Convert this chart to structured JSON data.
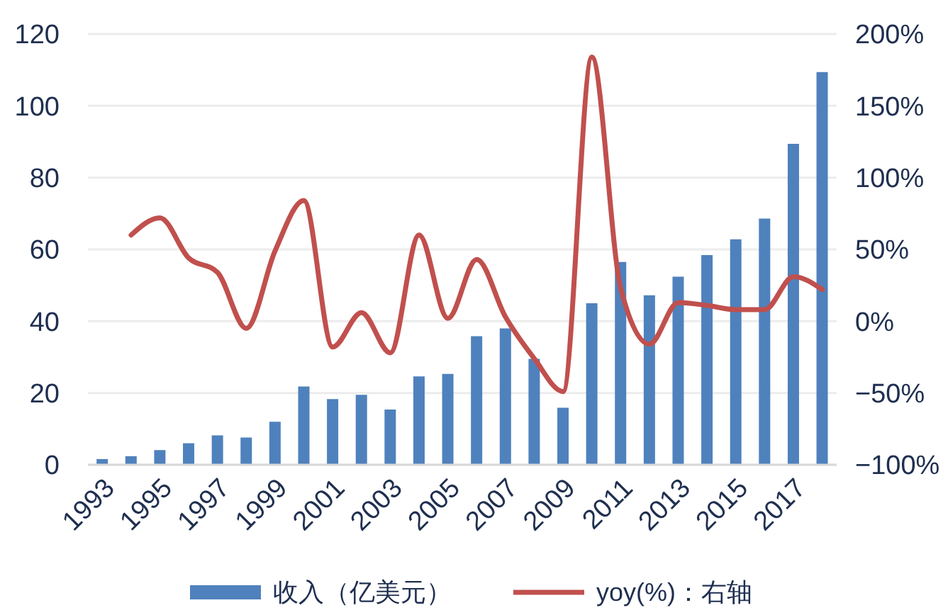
{
  "chart_data": {
    "type": "bar",
    "categories": [
      "1993",
      null,
      "1995",
      null,
      "1997",
      null,
      "1999",
      null,
      "2001",
      null,
      "2003",
      null,
      "2005",
      null,
      "2007",
      null,
      "2009",
      null,
      "2011",
      null,
      "2013",
      null,
      "2015",
      null,
      "2017",
      null
    ],
    "series": [
      {
        "name": "收入（亿美元）",
        "color": "#4f81bd",
        "values": [
          1.6,
          2.4,
          4.1,
          6.0,
          8.2,
          7.6,
          12.0,
          21.8,
          18.3,
          19.5,
          15.4,
          24.6,
          25.3,
          35.8,
          38.0,
          29.5,
          15.9,
          45.0,
          56.5,
          47.2,
          52.4,
          58.4,
          62.8,
          68.6,
          89.4,
          109.4
        ]
      },
      {
        "name": "yoy(%)：右轴",
        "type": "line",
        "color": "#c0504d",
        "axis": "y2",
        "values": [
          null,
          60,
          72,
          44,
          34,
          -5,
          49,
          84,
          -18,
          6,
          -22,
          60,
          2,
          43,
          3,
          -26,
          -49,
          184,
          23,
          -16,
          13,
          11,
          8,
          8,
          31,
          22
        ]
      }
    ],
    "ylim": [
      0,
      120
    ],
    "yticks": [
      0,
      20,
      40,
      60,
      80,
      100,
      120
    ],
    "y2lim": [
      -100,
      200
    ],
    "y2ticks": [
      {
        "value": -100,
        "label": "−100%"
      },
      {
        "value": -50,
        "label": "−50%"
      },
      {
        "value": 0,
        "label": "0%"
      },
      {
        "value": 50,
        "label": "50%"
      },
      {
        "value": 100,
        "label": "100%"
      },
      {
        "value": 150,
        "label": "150%"
      },
      {
        "value": 200,
        "label": "200%"
      }
    ],
    "grid": "y",
    "legend": "bottom"
  }
}
